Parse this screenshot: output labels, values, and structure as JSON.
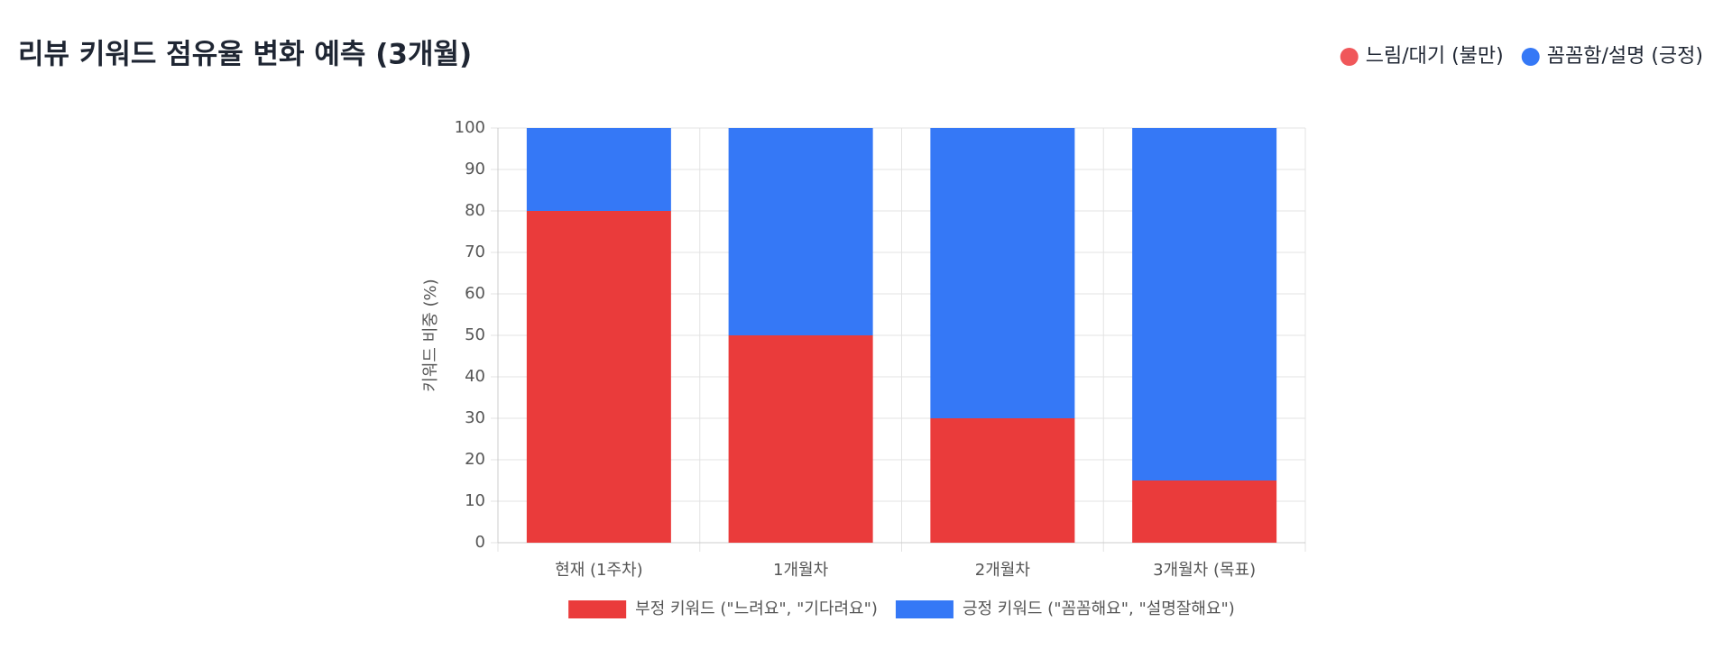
{
  "chart_data": {
    "type": "stacked_bar",
    "title": "리뷰 키워드 점유율 변화 예측 (3개월)",
    "header_legend": [
      {
        "label": "느림/대기 (불만)",
        "color": "#f0575a"
      },
      {
        "label": "꼼꼼함/설명 (긍정)",
        "color": "#3578f6"
      }
    ],
    "y_label": "키워드 비중 (%)",
    "categories": [
      "현재 (1주차)",
      "1개월차",
      "2개월차",
      "3개월차 (목표)"
    ],
    "series": [
      {
        "name": "부정 키워드 (\"느려요\", \"기다려요\")",
        "color": "#ea3b3b",
        "values": [
          80,
          50,
          30,
          15
        ]
      },
      {
        "name": "긍정 키워드 (\"꼼꼼해요\", \"설명잘해요\")",
        "color": "#3578f6",
        "values": [
          20,
          50,
          70,
          85
        ]
      }
    ],
    "ylim": [
      0,
      100
    ],
    "yticks": [
      0,
      10,
      20,
      30,
      40,
      50,
      60,
      70,
      80,
      90,
      100
    ],
    "grid": true
  }
}
